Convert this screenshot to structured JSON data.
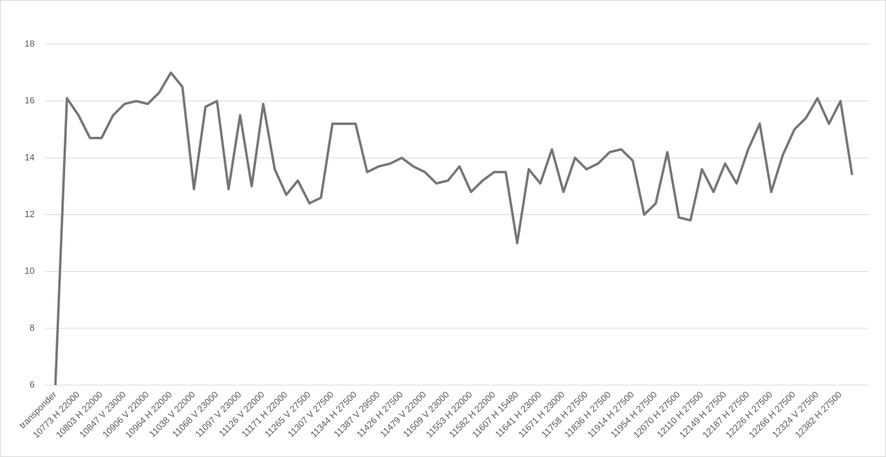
{
  "chart_data": {
    "type": "line",
    "color": "#767676",
    "grid": true,
    "ylim": [
      6,
      18
    ],
    "yticks": [
      6,
      8,
      10,
      12,
      14,
      16,
      18
    ],
    "categories": [
      "transponder",
      null,
      "10773 H 22000",
      null,
      "10803 H 22000",
      null,
      "10847 V 23000",
      null,
      "10906 V 22000",
      null,
      "10964 H 22000",
      null,
      "11038 V 22000",
      null,
      "11068 V 23000",
      null,
      "11097 V 23000",
      null,
      "11126 V 22000",
      null,
      "11171 H 22000",
      null,
      "11265 V 27500",
      null,
      "11307 V 27500",
      null,
      "11344 H 27500",
      null,
      "11387 V 29500",
      null,
      "11426 H 27500",
      null,
      "11479 V 22000",
      null,
      "11509 V 23000",
      null,
      "11553 H 22000",
      null,
      "11582 H 22000",
      null,
      "11607 H 15480",
      null,
      "11641 H 23000",
      null,
      "11671 H 23000",
      null,
      "11758 H 27500",
      null,
      "11836 H 27500",
      null,
      "11914 H 27500",
      null,
      "11954 H 27500",
      null,
      "12070 H 27500",
      null,
      "12110 H 27500",
      null,
      "12149 H 27500",
      null,
      "12187 H 27500",
      null,
      "12226 H 27500",
      null,
      "12266 H 27500",
      null,
      "12324 V 27500",
      null,
      "12382 H 27500",
      null
    ],
    "values": [
      6,
      16.1,
      15.5,
      14.7,
      14.7,
      15.5,
      15.9,
      16.0,
      15.9,
      16.3,
      17.0,
      16.5,
      12.9,
      15.8,
      16.0,
      12.9,
      15.5,
      13.0,
      15.9,
      13.6,
      12.7,
      13.2,
      12.4,
      12.6,
      15.2,
      15.2,
      15.2,
      13.5,
      13.7,
      13.8,
      14.0,
      13.7,
      13.5,
      13.1,
      13.2,
      13.7,
      12.8,
      13.2,
      13.5,
      13.5,
      11.0,
      13.6,
      13.1,
      14.3,
      12.8,
      14.0,
      13.6,
      13.8,
      14.2,
      14.3,
      13.9,
      12.0,
      12.4,
      14.2,
      11.9,
      11.8,
      13.6,
      12.8,
      13.8,
      13.1,
      14.3,
      15.2,
      12.8,
      14.1,
      15.0,
      15.4,
      16.1,
      15.2,
      16.0,
      13.4
    ]
  }
}
